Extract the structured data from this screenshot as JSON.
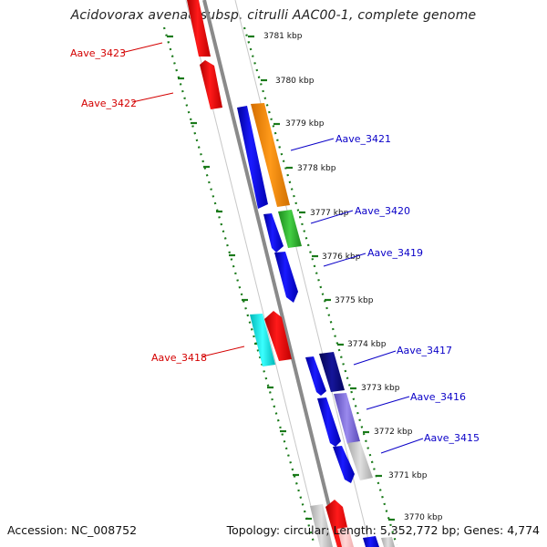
{
  "title": "Acidovorax avenae subsp. citrulli AAC00-1, complete genome",
  "footer": {
    "accession": "Accession: NC_008752",
    "summary": "Topology: circular; Length: 5,352,772 bp; Genes: 4,774"
  },
  "kbp_labels": [
    "3781 kbp",
    "3780 kbp",
    "3779 kbp",
    "3778 kbp",
    "3777 kbp",
    "3776 kbp",
    "3775 kbp",
    "3774 kbp",
    "3773 kbp",
    "3772 kbp",
    "3771 kbp",
    "3770 kbp"
  ],
  "genes_left": [
    "Aave_3423",
    "Aave_3422",
    "Aave_3418"
  ],
  "genes_right": [
    "Aave_3421",
    "Aave_3420",
    "Aave_3419",
    "Aave_3417",
    "Aave_3416",
    "Aave_3415"
  ],
  "colors": {
    "red": "#ff0000",
    "blue": "#0000ee",
    "orange": "#ff8c00",
    "green": "#2db82d",
    "navy": "#0a0a78",
    "lavender": "#8070d8",
    "cyan": "#00e5e5",
    "gray": "#cccccc",
    "tick": "#1a7a1a",
    "axis": "#808080",
    "label_left": "#d40000",
    "label_right": "#0a00c8"
  }
}
